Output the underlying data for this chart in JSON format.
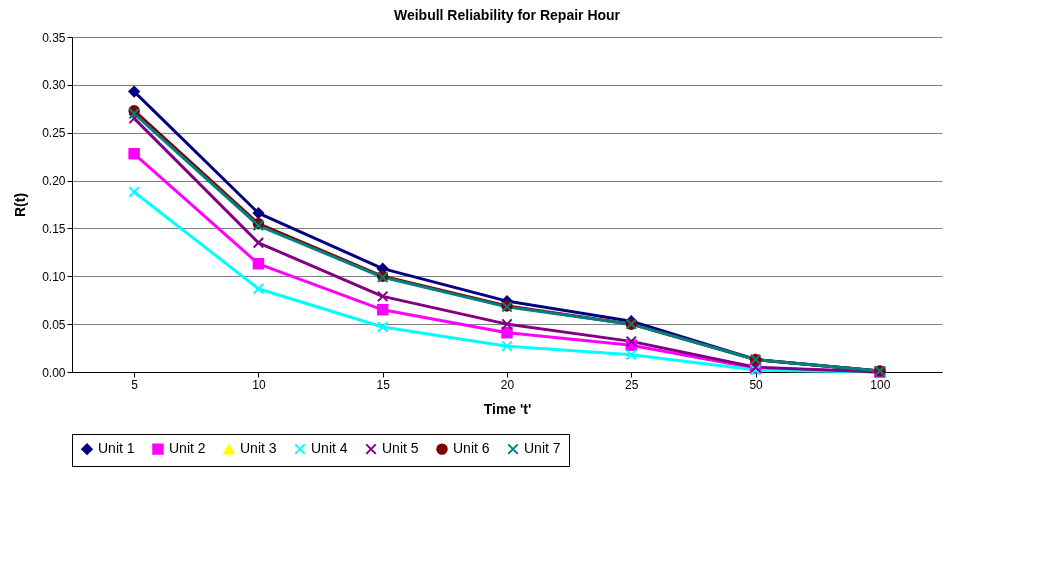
{
  "chart_data": {
    "type": "line",
    "title": "Weibull Reliability for Repair Hour",
    "xlabel": "Time 't'",
    "ylabel": "R(t)",
    "categories": [
      "5",
      "10",
      "15",
      "20",
      "25",
      "50",
      "100"
    ],
    "ylim": [
      0,
      0.35
    ],
    "yticks": [
      {
        "value": 0,
        "label": "0.00"
      },
      0.05,
      {
        "value": 0.1,
        "label": "0.10"
      },
      0.15,
      {
        "value": 0.2,
        "label": "0.20"
      },
      0.25,
      {
        "value": 0.3,
        "label": "0.30"
      },
      0.35
    ],
    "grid": "y",
    "legend": "bottom",
    "series": [
      {
        "name": "Unit 1",
        "color": "#000080",
        "marker": "diamond",
        "values": [
          0.293,
          0.166,
          0.108,
          0.074,
          0.053,
          0.013,
          0.001
        ]
      },
      {
        "name": "Unit 2",
        "color": "#ff00ff",
        "marker": "square",
        "values": [
          0.228,
          0.113,
          0.065,
          0.041,
          0.028,
          0.004,
          0.0
        ]
      },
      {
        "name": "Unit 3",
        "color": "#ffff00",
        "marker": "triangle",
        "values": [
          null,
          null,
          null,
          null,
          null,
          null,
          null
        ]
      },
      {
        "name": "Unit 4",
        "color": "#00ffff",
        "marker": "cross",
        "values": [
          0.188,
          0.087,
          0.047,
          0.027,
          0.018,
          0.002,
          0.0
        ]
      },
      {
        "name": "Unit 5",
        "color": "#800080",
        "marker": "cross",
        "values": [
          0.265,
          0.135,
          0.079,
          0.05,
          0.032,
          0.005,
          0.0
        ]
      },
      {
        "name": "Unit 6",
        "color": "#800000",
        "marker": "circle",
        "values": [
          0.273,
          0.155,
          0.1,
          0.069,
          0.05,
          0.013,
          0.001
        ]
      },
      {
        "name": "Unit 7",
        "color": "#008080",
        "marker": "cross",
        "values": [
          0.27,
          0.153,
          0.099,
          0.068,
          0.05,
          0.013,
          0.001
        ]
      }
    ]
  }
}
